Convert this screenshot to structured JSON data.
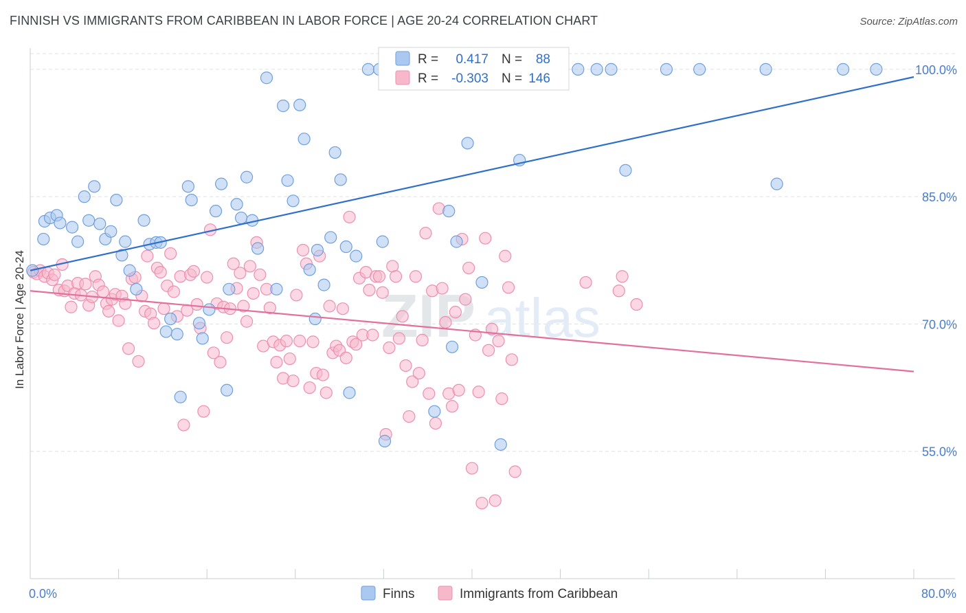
{
  "header": {
    "title": "FINNISH VS IMMIGRANTS FROM CARIBBEAN IN LABOR FORCE | AGE 20-24 CORRELATION CHART",
    "source": "Source: ZipAtlas.com"
  },
  "watermark": {
    "part1": "ZIP",
    "part2": "atlas"
  },
  "colors": {
    "finns_fill": "#aac8f0",
    "finns_stroke": "#6f9fdc",
    "finns_line": "#2f6fcc",
    "carib_fill": "#f7b8cc",
    "carib_stroke": "#ec8fae",
    "carib_line": "#e2709a",
    "grid": "#dde1e6",
    "tick_text": "#4a7cc9"
  },
  "legend_box": {
    "r_label": "R =",
    "n_label": "N =",
    "finns": {
      "r": "0.417",
      "n": "88"
    },
    "carib": {
      "r": "-0.303",
      "n": "146"
    }
  },
  "bottom_legend": {
    "finns": "Finns",
    "carib": "Immigrants from Caribbean"
  },
  "chart_data": {
    "type": "scatter",
    "title": "FINNISH VS IMMIGRANTS FROM CARIBBEAN IN LABOR FORCE | AGE 20-24 CORRELATION CHART",
    "xlabel": "",
    "ylabel": "In Labor Force | Age 20-24",
    "xlim": [
      0,
      80
    ],
    "ylim": [
      40,
      102.5
    ],
    "x_tick_labels": [
      "0.0%",
      "80.0%"
    ],
    "y_ticks": [
      55,
      70,
      85,
      100
    ],
    "y_tick_labels": [
      "55.0%",
      "70.0%",
      "85.0%",
      "100.0%"
    ],
    "grid": true,
    "legend_position": "top-center",
    "series": [
      {
        "name": "Finns",
        "r": 0.417,
        "n": 88,
        "trend": {
          "x": [
            0,
            80
          ],
          "y": [
            76.3,
            99.1
          ]
        },
        "points": [
          [
            0.2,
            76.3
          ],
          [
            1.2,
            80.0
          ],
          [
            1.3,
            82.1
          ],
          [
            1.8,
            82.5
          ],
          [
            2.4,
            82.8
          ],
          [
            2.7,
            81.9
          ],
          [
            3.8,
            81.4
          ],
          [
            4.3,
            79.7
          ],
          [
            4.9,
            85.0
          ],
          [
            5.3,
            82.2
          ],
          [
            5.8,
            86.2
          ],
          [
            6.3,
            81.8
          ],
          [
            6.8,
            80.0
          ],
          [
            7.3,
            80.9
          ],
          [
            7.8,
            84.6
          ],
          [
            8.3,
            78.1
          ],
          [
            8.6,
            79.7
          ],
          [
            9.0,
            76.3
          ],
          [
            9.6,
            74.1
          ],
          [
            10.3,
            82.2
          ],
          [
            10.8,
            79.4
          ],
          [
            11.4,
            79.6
          ],
          [
            11.8,
            79.6
          ],
          [
            12.3,
            69.1
          ],
          [
            12.7,
            70.6
          ],
          [
            13.3,
            68.8
          ],
          [
            13.6,
            61.4
          ],
          [
            14.3,
            86.2
          ],
          [
            14.6,
            84.6
          ],
          [
            15.3,
            70.1
          ],
          [
            15.6,
            68.3
          ],
          [
            16.2,
            71.7
          ],
          [
            16.8,
            83.3
          ],
          [
            17.3,
            86.5
          ],
          [
            17.8,
            62.2
          ],
          [
            18.0,
            74.1
          ],
          [
            18.7,
            84.1
          ],
          [
            19.1,
            82.5
          ],
          [
            19.6,
            87.3
          ],
          [
            20.1,
            82.2
          ],
          [
            20.6,
            78.9
          ],
          [
            21.4,
            99.0
          ],
          [
            22.3,
            74.1
          ],
          [
            22.9,
            95.7
          ],
          [
            23.3,
            86.9
          ],
          [
            23.8,
            84.5
          ],
          [
            24.4,
            95.8
          ],
          [
            24.8,
            91.8
          ],
          [
            25.3,
            76.4
          ],
          [
            25.8,
            70.6
          ],
          [
            26.0,
            78.7
          ],
          [
            26.6,
            74.6
          ],
          [
            27.2,
            80.2
          ],
          [
            27.6,
            90.2
          ],
          [
            28.1,
            87.0
          ],
          [
            28.6,
            79.1
          ],
          [
            28.9,
            61.9
          ],
          [
            29.5,
            78.0
          ],
          [
            30.6,
            100.0
          ],
          [
            31.6,
            100.0
          ],
          [
            31.9,
            79.7
          ],
          [
            32.1,
            56.2
          ],
          [
            32.9,
            100.0
          ],
          [
            33.6,
            100.0
          ],
          [
            34.6,
            100.0
          ],
          [
            35.6,
            100.0
          ],
          [
            36.6,
            59.7
          ],
          [
            37.6,
            100.0
          ],
          [
            37.9,
            83.3
          ],
          [
            38.2,
            67.3
          ],
          [
            38.6,
            79.7
          ],
          [
            39.6,
            91.3
          ],
          [
            40.3,
            100.0
          ],
          [
            40.9,
            74.9
          ],
          [
            41.6,
            100.0
          ],
          [
            42.6,
            55.8
          ],
          [
            43.6,
            100.0
          ],
          [
            44.3,
            89.3
          ],
          [
            49.6,
            100.0
          ],
          [
            51.3,
            100.0
          ],
          [
            52.6,
            100.0
          ],
          [
            53.9,
            88.1
          ],
          [
            57.6,
            100.0
          ],
          [
            60.6,
            100.0
          ],
          [
            66.6,
            100.0
          ],
          [
            67.6,
            86.5
          ],
          [
            73.6,
            100.0
          ],
          [
            76.6,
            100.0
          ]
        ]
      },
      {
        "name": "Immigrants from Caribbean",
        "r": -0.303,
        "n": 146,
        "trend": {
          "x": [
            0,
            80
          ],
          "y": [
            73.9,
            64.4
          ]
        },
        "points": [
          [
            0.3,
            76.1
          ],
          [
            0.6,
            75.9
          ],
          [
            0.9,
            76.3
          ],
          [
            1.3,
            75.6
          ],
          [
            1.6,
            76.0
          ],
          [
            2.0,
            75.2
          ],
          [
            2.2,
            75.8
          ],
          [
            2.6,
            74.0
          ],
          [
            2.9,
            77.0
          ],
          [
            3.1,
            73.9
          ],
          [
            3.4,
            74.5
          ],
          [
            3.7,
            72.0
          ],
          [
            4.0,
            73.6
          ],
          [
            4.3,
            74.8
          ],
          [
            4.6,
            73.4
          ],
          [
            5.0,
            74.7
          ],
          [
            5.3,
            72.2
          ],
          [
            5.6,
            73.2
          ],
          [
            5.9,
            75.6
          ],
          [
            6.2,
            74.6
          ],
          [
            6.6,
            73.8
          ],
          [
            6.9,
            72.4
          ],
          [
            7.1,
            71.5
          ],
          [
            7.4,
            72.9
          ],
          [
            7.7,
            73.5
          ],
          [
            8.0,
            70.4
          ],
          [
            8.3,
            73.3
          ],
          [
            8.6,
            72.4
          ],
          [
            8.9,
            67.1
          ],
          [
            9.2,
            75.3
          ],
          [
            9.5,
            75.5
          ],
          [
            9.8,
            65.6
          ],
          [
            10.1,
            73.3
          ],
          [
            10.4,
            71.5
          ],
          [
            10.6,
            78.0
          ],
          [
            10.9,
            71.2
          ],
          [
            11.2,
            70.1
          ],
          [
            11.5,
            76.6
          ],
          [
            11.8,
            76.1
          ],
          [
            12.1,
            71.8
          ],
          [
            12.4,
            74.5
          ],
          [
            12.7,
            78.3
          ],
          [
            13.0,
            73.8
          ],
          [
            13.3,
            70.9
          ],
          [
            13.6,
            75.6
          ],
          [
            13.9,
            58.1
          ],
          [
            14.2,
            71.6
          ],
          [
            14.5,
            75.8
          ],
          [
            14.8,
            76.2
          ],
          [
            15.1,
            72.3
          ],
          [
            15.4,
            69.5
          ],
          [
            15.7,
            59.7
          ],
          [
            16.0,
            75.5
          ],
          [
            16.3,
            81.1
          ],
          [
            16.6,
            66.6
          ],
          [
            16.9,
            72.4
          ],
          [
            17.2,
            65.5
          ],
          [
            17.5,
            72.0
          ],
          [
            17.8,
            68.4
          ],
          [
            18.1,
            71.8
          ],
          [
            18.4,
            77.1
          ],
          [
            18.7,
            74.2
          ],
          [
            19.0,
            76.0
          ],
          [
            19.3,
            72.1
          ],
          [
            19.6,
            70.3
          ],
          [
            19.9,
            76.8
          ],
          [
            20.2,
            73.6
          ],
          [
            20.5,
            79.6
          ],
          [
            20.8,
            75.8
          ],
          [
            21.1,
            67.4
          ],
          [
            21.4,
            74.1
          ],
          [
            21.7,
            71.9
          ],
          [
            22.0,
            67.9
          ],
          [
            22.3,
            65.5
          ],
          [
            22.6,
            67.5
          ],
          [
            22.9,
            63.6
          ],
          [
            23.2,
            68.0
          ],
          [
            23.5,
            65.9
          ],
          [
            23.8,
            63.3
          ],
          [
            24.1,
            73.4
          ],
          [
            24.4,
            68.0
          ],
          [
            24.7,
            78.7
          ],
          [
            25.0,
            77.1
          ],
          [
            25.3,
            62.5
          ],
          [
            25.6,
            67.9
          ],
          [
            25.9,
            64.2
          ],
          [
            26.2,
            78.0
          ],
          [
            26.5,
            64.0
          ],
          [
            26.8,
            61.9
          ],
          [
            27.1,
            72.1
          ],
          [
            27.4,
            66.6
          ],
          [
            27.7,
            67.4
          ],
          [
            28.0,
            66.9
          ],
          [
            28.3,
            71.8
          ],
          [
            28.6,
            66.0
          ],
          [
            28.9,
            82.6
          ],
          [
            29.2,
            67.9
          ],
          [
            29.5,
            67.6
          ],
          [
            29.8,
            75.4
          ],
          [
            30.1,
            68.7
          ],
          [
            30.4,
            76.1
          ],
          [
            30.7,
            74.0
          ],
          [
            31.0,
            68.7
          ],
          [
            31.3,
            75.6
          ],
          [
            31.6,
            75.6
          ],
          [
            31.9,
            73.7
          ],
          [
            32.2,
            57.0
          ],
          [
            32.5,
            67.2
          ],
          [
            32.8,
            76.8
          ],
          [
            33.1,
            75.6
          ],
          [
            33.4,
            68.3
          ],
          [
            33.7,
            70.9
          ],
          [
            34.0,
            65.1
          ],
          [
            34.3,
            59.1
          ],
          [
            34.6,
            63.2
          ],
          [
            34.9,
            75.6
          ],
          [
            35.2,
            64.2
          ],
          [
            35.5,
            68.1
          ],
          [
            35.8,
            80.7
          ],
          [
            36.1,
            61.8
          ],
          [
            36.4,
            73.9
          ],
          [
            36.7,
            58.3
          ],
          [
            37.0,
            83.6
          ],
          [
            37.3,
            74.2
          ],
          [
            37.6,
            70.2
          ],
          [
            37.9,
            61.8
          ],
          [
            38.2,
            60.3
          ],
          [
            38.5,
            71.4
          ],
          [
            38.8,
            62.2
          ],
          [
            39.1,
            80.0
          ],
          [
            39.4,
            72.9
          ],
          [
            39.7,
            76.6
          ],
          [
            40.0,
            53.0
          ],
          [
            40.3,
            68.7
          ],
          [
            40.6,
            62.0
          ],
          [
            40.9,
            48.9
          ],
          [
            41.2,
            80.1
          ],
          [
            41.5,
            66.9
          ],
          [
            41.8,
            69.4
          ],
          [
            42.1,
            49.2
          ],
          [
            42.4,
            68.0
          ],
          [
            42.7,
            61.2
          ],
          [
            43.0,
            78.0
          ],
          [
            43.3,
            74.3
          ],
          [
            43.6,
            65.8
          ],
          [
            43.9,
            52.6
          ],
          [
            50.3,
            74.9
          ],
          [
            53.3,
            73.9
          ],
          [
            53.6,
            75.6
          ],
          [
            54.9,
            72.3
          ]
        ]
      }
    ]
  }
}
